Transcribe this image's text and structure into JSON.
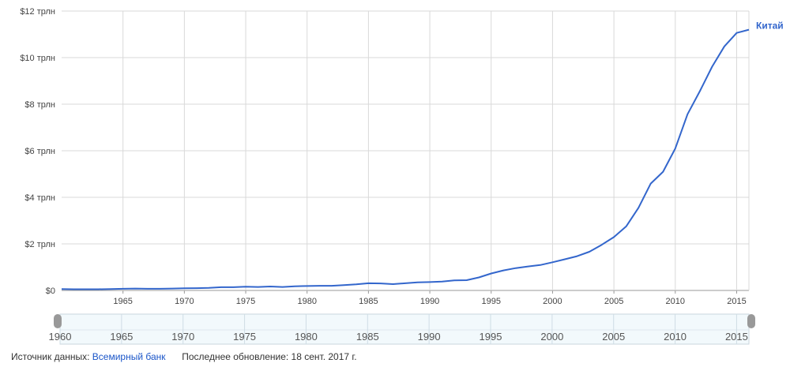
{
  "chart_data": {
    "type": "line",
    "y_tick_labels": [
      "$0",
      "$2 трлн",
      "$4 трлн",
      "$6 трлн",
      "$8 трлн",
      "$10 трлн",
      "$12 трлн"
    ],
    "y_tick_values": [
      0,
      2,
      4,
      6,
      8,
      10,
      12
    ],
    "ylim": [
      0,
      12
    ],
    "y_unit": "трлн",
    "x_tick_labels": [
      "1965",
      "1970",
      "1975",
      "1980",
      "1985",
      "1990",
      "1995",
      "2000",
      "2005",
      "2010",
      "2015"
    ],
    "x_tick_values": [
      1965,
      1970,
      1975,
      1980,
      1985,
      1990,
      1995,
      2000,
      2005,
      2010,
      2015
    ],
    "xlim": [
      1960,
      2016
    ],
    "grid": true,
    "series": [
      {
        "name": "Китай",
        "color": "#3366cc",
        "x": [
          1960,
          1961,
          1962,
          1963,
          1964,
          1965,
          1966,
          1967,
          1968,
          1969,
          1970,
          1971,
          1972,
          1973,
          1974,
          1975,
          1976,
          1977,
          1978,
          1979,
          1980,
          1981,
          1982,
          1983,
          1984,
          1985,
          1986,
          1987,
          1988,
          1989,
          1990,
          1991,
          1992,
          1993,
          1994,
          1995,
          1996,
          1997,
          1998,
          1999,
          2000,
          2001,
          2002,
          2003,
          2004,
          2005,
          2006,
          2007,
          2008,
          2009,
          2010,
          2011,
          2012,
          2013,
          2014,
          2015,
          2016
        ],
        "y": [
          0.06,
          0.05,
          0.05,
          0.05,
          0.06,
          0.07,
          0.08,
          0.07,
          0.07,
          0.08,
          0.09,
          0.1,
          0.11,
          0.14,
          0.14,
          0.16,
          0.15,
          0.17,
          0.15,
          0.18,
          0.19,
          0.2,
          0.2,
          0.23,
          0.26,
          0.31,
          0.3,
          0.27,
          0.31,
          0.35,
          0.36,
          0.38,
          0.43,
          0.44,
          0.56,
          0.73,
          0.86,
          0.96,
          1.03,
          1.09,
          1.21,
          1.34,
          1.47,
          1.66,
          1.96,
          2.29,
          2.75,
          3.55,
          4.59,
          5.1,
          6.1,
          7.57,
          8.56,
          9.61,
          10.48,
          11.06,
          11.2
        ]
      }
    ],
    "range_selector": {
      "tick_labels": [
        "1960",
        "1965",
        "1970",
        "1975",
        "1980",
        "1985",
        "1990",
        "1995",
        "2000",
        "2005",
        "2010",
        "2015"
      ],
      "tick_values": [
        1960,
        1965,
        1970,
        1975,
        1980,
        1985,
        1990,
        1995,
        2000,
        2005,
        2010,
        2015
      ],
      "selected_range": [
        1960,
        2016
      ]
    }
  },
  "footer": {
    "source_label": "Источник данных:",
    "source_link": "Всемирный банк",
    "updated_label": "Последнее обновление: 18 сент. 2017 г."
  }
}
